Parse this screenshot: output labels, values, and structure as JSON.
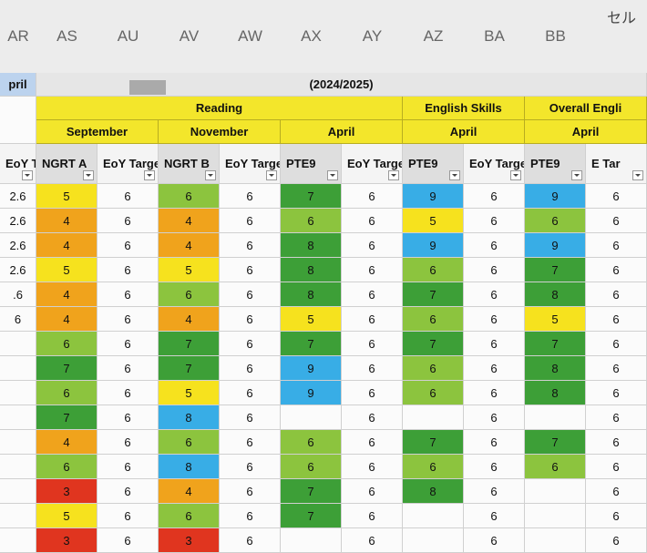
{
  "column_letters": [
    "AR",
    "AS",
    "AU",
    "AV",
    "AW",
    "AX",
    "AY",
    "AZ",
    "BA",
    "BB"
  ],
  "toolbar_text": "セル",
  "left_header": "pril",
  "year_header": "(2024/2025)",
  "subjects": [
    {
      "label": "Reading",
      "span": 6
    },
    {
      "label": "English Skills",
      "span": 2
    },
    {
      "label": "Overall Engli",
      "span": 2
    }
  ],
  "terms": [
    {
      "label": "September",
      "span": 2
    },
    {
      "label": "November",
      "span": 2
    },
    {
      "label": "April",
      "span": 2
    },
    {
      "label": "April",
      "span": 2
    },
    {
      "label": "April",
      "span": 2
    }
  ],
  "columns": [
    {
      "header": "EoY Targe",
      "values": [
        "2.6",
        "2.6",
        "2.6",
        "2.6",
        ".6",
        "6",
        null,
        null,
        null,
        null,
        null,
        null,
        null,
        null,
        null
      ]
    },
    {
      "header": "NGRT A",
      "values": [
        5,
        4,
        4,
        5,
        4,
        4,
        6,
        7,
        6,
        7,
        4,
        6,
        3,
        5,
        3
      ],
      "colors": {
        "3": "#e0351f",
        "4": "#f0a31c",
        "5": "#f6e21e",
        "6": "#8cc43e",
        "7": "#3d9f37",
        "8": "#38ade6"
      }
    },
    {
      "header": "EoY Targe",
      "values": [
        6,
        6,
        6,
        6,
        6,
        6,
        6,
        6,
        6,
        6,
        6,
        6,
        6,
        6,
        6
      ]
    },
    {
      "header": "NGRT B",
      "values": [
        6,
        4,
        4,
        5,
        6,
        4,
        7,
        7,
        5,
        8,
        6,
        8,
        4,
        6,
        3
      ],
      "colors": {
        "3": "#e0351f",
        "4": "#f0a31c",
        "5": "#f6e21e",
        "6": "#8cc43e",
        "7": "#3d9f37",
        "8": "#38ade6"
      }
    },
    {
      "header": "EoY Targe",
      "values": [
        6,
        6,
        6,
        6,
        6,
        6,
        6,
        6,
        6,
        6,
        6,
        6,
        6,
        6,
        6
      ]
    },
    {
      "header": "PTE9",
      "values": [
        7,
        6,
        8,
        8,
        8,
        5,
        7,
        9,
        9,
        null,
        6,
        6,
        7,
        7,
        null
      ],
      "colors": {
        "5": "#f6e21e",
        "6": "#8cc43e",
        "7": "#3d9f37",
        "8": "#3d9f37",
        "9": "#38ade6"
      }
    },
    {
      "header": "EoY Targe",
      "values": [
        6,
        6,
        6,
        6,
        6,
        6,
        6,
        6,
        6,
        6,
        6,
        6,
        6,
        6,
        6
      ]
    },
    {
      "header": "PTE9",
      "values": [
        9,
        5,
        9,
        6,
        7,
        6,
        7,
        6,
        6,
        null,
        7,
        6,
        8,
        null,
        null
      ],
      "colors": {
        "5": "#f6e21e",
        "6": "#8cc43e",
        "7": "#3d9f37",
        "8": "#3d9f37",
        "9": "#38ade6"
      }
    },
    {
      "header": "EoY Targe",
      "values": [
        6,
        6,
        6,
        6,
        6,
        6,
        6,
        6,
        6,
        6,
        6,
        6,
        6,
        6,
        6
      ]
    },
    {
      "header": "PTE9",
      "values": [
        9,
        6,
        9,
        7,
        8,
        5,
        7,
        8,
        8,
        null,
        7,
        6,
        null,
        null,
        null
      ],
      "colors": {
        "5": "#f6e21e",
        "6": "#8cc43e",
        "7": "#3d9f37",
        "8": "#3d9f37",
        "9": "#38ade6"
      }
    },
    {
      "header": "E Tar",
      "values": [
        6,
        6,
        6,
        6,
        6,
        6,
        6,
        6,
        6,
        6,
        6,
        6,
        6,
        6,
        6
      ]
    }
  ]
}
